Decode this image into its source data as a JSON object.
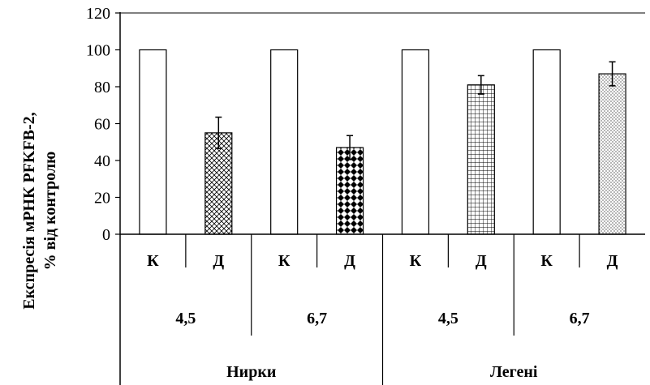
{
  "chart_data": {
    "type": "bar",
    "ylabel_lines": [
      "Експресія мРНК PFKFB-2,",
      "% від контролю"
    ],
    "ylim": [
      0,
      120
    ],
    "yticks": [
      0,
      20,
      40,
      60,
      80,
      100,
      120
    ],
    "grid": false,
    "bars": [
      {
        "label": "К",
        "value": 100,
        "error": null,
        "pattern": "none"
      },
      {
        "label": "Д",
        "value": 55,
        "error": 8.5,
        "pattern": "diagonal-cross"
      },
      {
        "label": "К",
        "value": 100,
        "error": null,
        "pattern": "none"
      },
      {
        "label": "Д",
        "value": 47,
        "error": 6.5,
        "pattern": "black-diamonds"
      },
      {
        "label": "К",
        "value": 100,
        "error": null,
        "pattern": "none"
      },
      {
        "label": "Д",
        "value": 81,
        "error": 5,
        "pattern": "grid"
      },
      {
        "label": "К",
        "value": 100,
        "error": null,
        "pattern": "none"
      },
      {
        "label": "Д",
        "value": 87,
        "error": 6.5,
        "pattern": "dots"
      }
    ],
    "group_level_1": [
      "4,5",
      "6,7",
      "4,5",
      "6,7"
    ],
    "group_level_2": [
      "Нирки",
      "Легені"
    ],
    "colors": {
      "bar_fill": "#ffffff",
      "stroke": "#000000"
    }
  }
}
